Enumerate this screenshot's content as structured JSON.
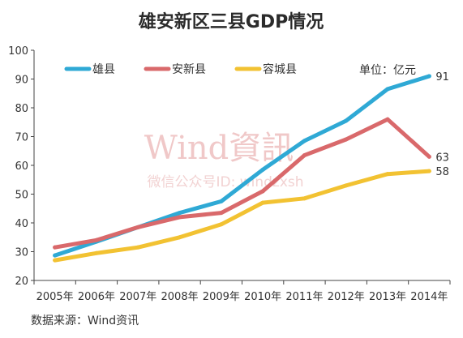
{
  "title": "雄安新区三县GDP情况",
  "unit_label": "单位：亿元",
  "source": "数据来源：Wind资讯",
  "watermark": {
    "main": "Wind資訊",
    "sub": "微信公众号ID: windzxsh"
  },
  "colors": {
    "雄县": "#2fa9d5",
    "安新县": "#d9696b",
    "容城县": "#f2c232"
  },
  "chart_data": {
    "type": "line",
    "title": "雄安新区三县GDP情况",
    "xlabel": "",
    "ylabel": "",
    "categories": [
      "2005年",
      "2006年",
      "2007年",
      "2008年",
      "2009年",
      "2010年",
      "2011年",
      "2012年",
      "2013年",
      "2014年"
    ],
    "ylim": [
      20,
      100
    ],
    "yticks": [
      20,
      30,
      40,
      50,
      60,
      70,
      80,
      90,
      100
    ],
    "grid": false,
    "legend": "top-left",
    "series": [
      {
        "name": "雄县",
        "values": [
          28.7,
          33.5,
          38.5,
          43.5,
          47.5,
          58.5,
          68.5,
          75.5,
          86.5,
          91
        ],
        "end_label": "91"
      },
      {
        "name": "安新县",
        "values": [
          31.5,
          34,
          38.5,
          42,
          43.5,
          51,
          63.5,
          69,
          76,
          63
        ],
        "end_label": "63"
      },
      {
        "name": "容城县",
        "values": [
          27,
          29.5,
          31.5,
          35,
          39.5,
          47,
          48.5,
          53,
          57,
          58
        ],
        "end_label": "58"
      }
    ]
  }
}
